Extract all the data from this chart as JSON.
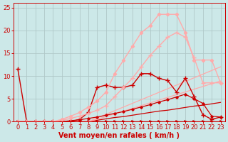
{
  "background_color": "#cce8e8",
  "grid_color": "#b0c8c8",
  "xlabel": "Vent moyen/en rafales ( km/h )",
  "xlabel_color": "#cc0000",
  "xlabel_fontsize": 7,
  "tick_color": "#cc0000",
  "tick_fontsize": 6,
  "xlim": [
    -0.5,
    23.5
  ],
  "ylim": [
    0,
    26
  ],
  "yticks": [
    0,
    5,
    10,
    15,
    20,
    25
  ],
  "xticks": [
    0,
    1,
    2,
    3,
    4,
    5,
    6,
    7,
    8,
    9,
    10,
    11,
    12,
    13,
    14,
    15,
    16,
    17,
    18,
    19,
    20,
    21,
    22,
    23
  ],
  "series": [
    {
      "x": [
        0,
        1,
        2,
        3,
        4,
        5,
        6,
        7,
        8,
        9,
        10,
        11,
        12,
        13,
        14,
        15,
        16,
        17,
        18,
        19,
        20,
        21,
        22,
        23
      ],
      "y": [
        0,
        0,
        0,
        0,
        0,
        0,
        0,
        0,
        0,
        0,
        0,
        0,
        0,
        0,
        0,
        0,
        0,
        0,
        0,
        0,
        0,
        0,
        0,
        0
      ],
      "color": "#cc0000",
      "linewidth": 1.0,
      "marker": ">",
      "markersize": 2.5,
      "linestyle": "-"
    },
    {
      "x": [
        0,
        1,
        2,
        3,
        4,
        5,
        6,
        7,
        8,
        9,
        10,
        11,
        12,
        13,
        14,
        15,
        16,
        17,
        18,
        19,
        20,
        21,
        22,
        23
      ],
      "y": [
        0,
        0,
        0,
        0,
        0,
        0,
        0,
        0,
        0,
        0.3,
        0.6,
        0.9,
        1.1,
        1.4,
        1.7,
        2.0,
        2.3,
        2.5,
        2.8,
        3.1,
        3.4,
        3.6,
        3.9,
        4.2
      ],
      "color": "#cc0000",
      "linewidth": 0.9,
      "marker": null,
      "markersize": 0,
      "linestyle": "-"
    },
    {
      "x": [
        0,
        1,
        2,
        3,
        4,
        5,
        6,
        7,
        8,
        9,
        10,
        11,
        12,
        13,
        14,
        15,
        16,
        17,
        18,
        19,
        20,
        21,
        22,
        23
      ],
      "y": [
        0,
        0,
        0,
        0,
        0,
        0,
        0,
        0,
        0,
        0.5,
        1.1,
        1.7,
        2.3,
        2.9,
        3.5,
        4.1,
        4.7,
        5.3,
        5.9,
        6.5,
        7.1,
        7.7,
        8.3,
        8.9
      ],
      "color": "#ffaaaa",
      "linewidth": 0.9,
      "marker": null,
      "markersize": 0,
      "linestyle": "-"
    },
    {
      "x": [
        0,
        1,
        2,
        3,
        4,
        5,
        6,
        7,
        8,
        9,
        10,
        11,
        12,
        13,
        14,
        15,
        16,
        17,
        18,
        19,
        20,
        21,
        22,
        23
      ],
      "y": [
        0,
        0,
        0,
        0,
        0,
        0,
        0,
        0,
        0,
        0.8,
        1.6,
        2.4,
        3.2,
        4.0,
        4.8,
        5.6,
        6.4,
        7.2,
        8.0,
        8.8,
        9.6,
        10.4,
        11.2,
        12.0
      ],
      "color": "#ffaaaa",
      "linewidth": 0.9,
      "marker": null,
      "markersize": 0,
      "linestyle": "-"
    },
    {
      "x": [
        0,
        1,
        2,
        3,
        4,
        5,
        6,
        7,
        8,
        9,
        10,
        11,
        12,
        13,
        14,
        15,
        16,
        17,
        18,
        19,
        20,
        21,
        22,
        23
      ],
      "y": [
        0,
        0,
        0,
        0,
        0,
        0,
        0.2,
        0.4,
        0.7,
        1.0,
        1.4,
        1.8,
        2.2,
        2.7,
        3.2,
        3.7,
        4.3,
        4.8,
        5.4,
        6.0,
        5.0,
        4.0,
        1.2,
        1.0
      ],
      "color": "#cc0000",
      "linewidth": 0.9,
      "marker": "D",
      "markersize": 1.8,
      "linestyle": "-"
    },
    {
      "x": [
        0,
        1,
        2,
        3,
        4,
        5,
        6,
        7,
        8,
        9,
        10,
        11,
        12,
        13,
        14,
        15,
        16,
        17,
        18,
        19,
        20,
        21,
        22,
        23
      ],
      "y": [
        11.5,
        0,
        0,
        0,
        0,
        0,
        0,
        0.5,
        2.0,
        7.5,
        8.0,
        7.5,
        7.5,
        8.0,
        10.5,
        10.5,
        9.5,
        9.0,
        6.5,
        9.5,
        5.5,
        1.5,
        0.5,
        1.0
      ],
      "color": "#cc0000",
      "linewidth": 1.0,
      "marker": "+",
      "markersize": 4,
      "linestyle": "-"
    },
    {
      "x": [
        0,
        1,
        2,
        3,
        4,
        5,
        6,
        7,
        8,
        9,
        10,
        11,
        12,
        13,
        14,
        15,
        16,
        17,
        18,
        19,
        20,
        21,
        22,
        23
      ],
      "y": [
        0,
        0,
        0,
        0,
        0,
        0.5,
        1.2,
        2.0,
        3.2,
        4.5,
        6.5,
        10.5,
        13.5,
        16.5,
        19.5,
        21.0,
        23.5,
        23.5,
        23.5,
        19.5,
        13.5,
        13.5,
        13.5,
        8.5
      ],
      "color": "#ffaaaa",
      "linewidth": 1.0,
      "marker": "D",
      "markersize": 2.2,
      "linestyle": "-"
    },
    {
      "x": [
        0,
        1,
        2,
        3,
        4,
        5,
        6,
        7,
        8,
        9,
        10,
        11,
        12,
        13,
        14,
        15,
        16,
        17,
        18,
        19,
        20,
        21,
        22,
        23
      ],
      "y": [
        0,
        0,
        0,
        0,
        0,
        0.3,
        0.7,
        1.2,
        1.8,
        2.5,
        3.5,
        5.5,
        7.5,
        9.5,
        12.0,
        14.5,
        16.5,
        18.5,
        19.5,
        18.5,
        14.0,
        8.5,
        8.5,
        8.5
      ],
      "color": "#ffaaaa",
      "linewidth": 1.0,
      "marker": "+",
      "markersize": 4,
      "linestyle": "-"
    }
  ]
}
